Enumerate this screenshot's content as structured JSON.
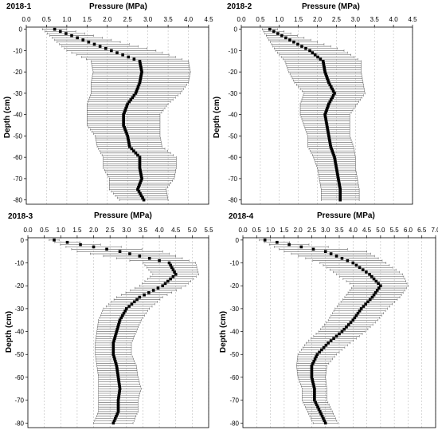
{
  "chart_data": [
    {
      "type": "scatter",
      "panel_label": "2018-1",
      "xlabel": "Pressure (MPa)",
      "ylabel": "Depth (cm)",
      "x_ticks": [
        "0.0",
        "0.5",
        "1.0",
        "1.5",
        "2.0",
        "2.5",
        "3.0",
        "3.5",
        "4.0",
        "4.5"
      ],
      "y_ticks": [
        "0",
        "-10",
        "-20",
        "-30",
        "-40",
        "-50",
        "-60",
        "-70",
        "-80"
      ],
      "xlim": [
        0,
        4.5
      ],
      "ylim": [
        -82,
        1
      ],
      "error_bars": "horizontal",
      "series": [
        {
          "depth": [
            0,
            -10,
            -15,
            -20,
            -25,
            -30,
            -35,
            -40,
            -45,
            -50,
            -55,
            -60,
            -65,
            -70,
            -75,
            -80
          ],
          "mean": [
            0.7,
            2.1,
            2.8,
            2.85,
            2.8,
            2.7,
            2.5,
            2.4,
            2.4,
            2.5,
            2.55,
            2.8,
            2.8,
            2.85,
            2.75,
            2.9
          ],
          "err": [
            0.3,
            1.1,
            1.2,
            1.2,
            1.2,
            1.1,
            1.0,
            0.9,
            0.9,
            0.8,
            0.8,
            0.9,
            0.9,
            0.8,
            0.7,
            0.6
          ]
        }
      ]
    },
    {
      "type": "scatter",
      "panel_label": "2018-2",
      "xlabel": "Pressure (MPa)",
      "ylabel": "Depth (cm)",
      "x_ticks": [
        "0.0",
        "0.5",
        "1.0",
        "1.5",
        "2.0",
        "2.5",
        "3.0",
        "3.5",
        "4.0",
        "4.5"
      ],
      "y_ticks": [
        "0",
        "-10",
        "-20",
        "-30",
        "-40",
        "-50",
        "-60",
        "-70",
        "-80"
      ],
      "xlim": [
        0,
        4.5
      ],
      "ylim": [
        -82,
        1
      ],
      "error_bars": "horizontal",
      "series": [
        {
          "depth": [
            0,
            -10,
            -15,
            -20,
            -25,
            -30,
            -35,
            -40,
            -45,
            -50,
            -55,
            -60,
            -65,
            -70,
            -75,
            -80
          ],
          "mean": [
            0.75,
            1.8,
            2.15,
            2.2,
            2.3,
            2.45,
            2.3,
            2.2,
            2.25,
            2.3,
            2.35,
            2.45,
            2.5,
            2.55,
            2.6,
            2.6
          ],
          "err": [
            0.2,
            0.9,
            1.0,
            0.95,
            0.9,
            0.8,
            0.75,
            0.65,
            0.6,
            0.55,
            0.6,
            0.55,
            0.5,
            0.5,
            0.5,
            0.5
          ]
        }
      ]
    },
    {
      "type": "scatter",
      "panel_label": "2018-3",
      "xlabel": "Pressure (MPa)",
      "ylabel": "Depth (cm)",
      "x_ticks": [
        "0.0",
        "0.5",
        "1.0",
        "1.5",
        "2.0",
        "2.5",
        "3.0",
        "3.5",
        "4.0",
        "4.5",
        "5.0",
        "5.5"
      ],
      "y_ticks": [
        "0",
        "-10",
        "-20",
        "-30",
        "-40",
        "-50",
        "-60",
        "-70",
        "-80"
      ],
      "xlim": [
        0,
        5.5
      ],
      "ylim": [
        -82,
        1
      ],
      "error_bars": "horizontal",
      "series": [
        {
          "depth": [
            0,
            -5,
            -10,
            -15,
            -20,
            -25,
            -30,
            -35,
            -40,
            -45,
            -50,
            -55,
            -60,
            -65,
            -70,
            -75,
            -80
          ],
          "mean": [
            0.8,
            2.8,
            4.3,
            4.5,
            4.1,
            3.4,
            3.0,
            2.8,
            2.7,
            2.6,
            2.6,
            2.7,
            2.75,
            2.8,
            2.75,
            2.75,
            2.6
          ],
          "err": [
            0.15,
            1.3,
            0.8,
            0.7,
            0.7,
            0.7,
            0.7,
            0.65,
            0.6,
            0.55,
            0.55,
            0.6,
            0.6,
            0.65,
            0.6,
            0.6,
            0.6
          ]
        }
      ]
    },
    {
      "type": "scatter",
      "panel_label": "2018-4",
      "xlabel": "Pressure (MPa)",
      "ylabel": "Depth (cm)",
      "x_ticks": [
        "0.0",
        "0.5",
        "1.0",
        "1.5",
        "2.0",
        "2.5",
        "3.0",
        "3.5",
        "4.0",
        "4.5",
        "5.0",
        "5.5",
        "6.0",
        "6.5",
        "7.0"
      ],
      "y_ticks": [
        "0",
        "-10",
        "-20",
        "-30",
        "-40",
        "-50",
        "-60",
        "-70",
        "-80"
      ],
      "xlim": [
        0,
        7.0
      ],
      "ylim": [
        -82,
        1
      ],
      "error_bars": "horizontal",
      "series": [
        {
          "depth": [
            0,
            -5,
            -10,
            -15,
            -20,
            -25,
            -30,
            -35,
            -40,
            -45,
            -50,
            -55,
            -60,
            -65,
            -70,
            -75,
            -80
          ],
          "mean": [
            0.8,
            3.0,
            4.0,
            4.6,
            5.0,
            4.7,
            4.3,
            4.0,
            3.6,
            3.1,
            2.7,
            2.5,
            2.5,
            2.6,
            2.6,
            2.8,
            3.0
          ],
          "err": [
            0.2,
            1.5,
            1.2,
            1.2,
            1.0,
            1.0,
            0.95,
            0.9,
            0.85,
            0.8,
            0.7,
            0.55,
            0.5,
            0.45,
            0.45,
            0.45,
            0.45
          ]
        }
      ]
    }
  ]
}
